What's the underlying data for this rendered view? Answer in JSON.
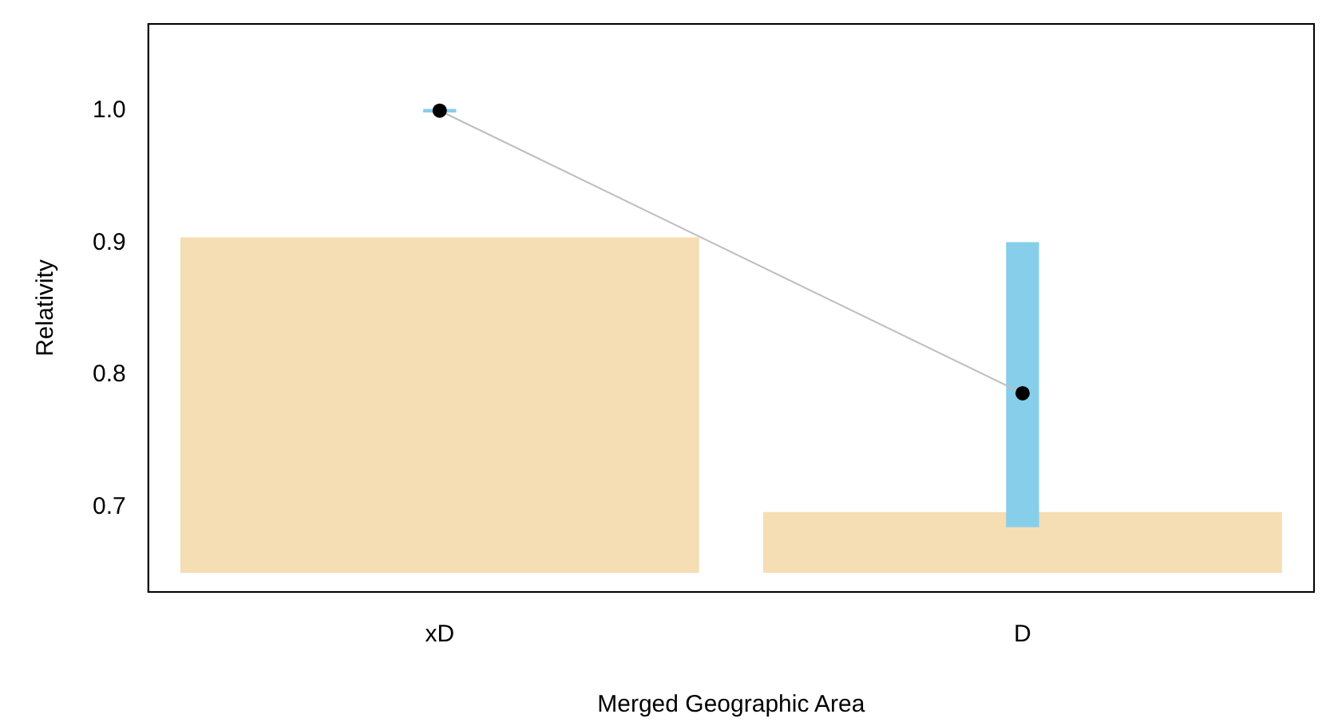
{
  "chart_data": {
    "type": "bar",
    "xlabel": "Merged Geographic Area",
    "ylabel": "Relativity",
    "categories": [
      "xD",
      "D"
    ],
    "series": [
      {
        "color": "#f5deb3",
        "values": [
          0.254,
          0.046
        ],
        "base": [
          0.65,
          0.65
        ]
      },
      {
        "type": "bar",
        "color": "#87ceeb",
        "values": [
          0.002,
          0.215
        ],
        "base": [
          0.999,
          0.685
        ]
      },
      {
        "type": "line",
        "color": "#bebebe",
        "x": [
          "xD",
          "D"
        ],
        "values": [
          1.0,
          0.786
        ],
        "marker": "none"
      },
      {
        "type": "scatter",
        "color": "#000000",
        "x": [
          "xD",
          "D"
        ],
        "values": [
          1.0,
          0.786
        ],
        "marker": "circle"
      }
    ],
    "ylim": [
      0.6355,
      1.0657
    ],
    "yticks": [
      0.7,
      0.8,
      0.9,
      {
        "value": 1.0,
        "label": "1.0"
      }
    ],
    "grid": false,
    "legend": false
  }
}
